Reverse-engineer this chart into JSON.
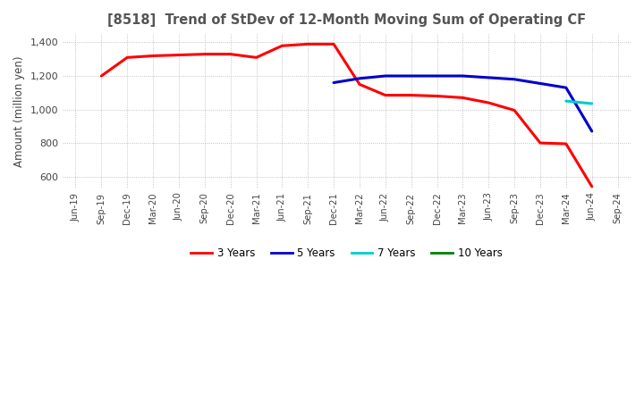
{
  "title": "[8518]  Trend of StDev of 12-Month Moving Sum of Operating CF",
  "ylabel": "Amount (million yen)",
  "ylim": [
    530,
    1450
  ],
  "yticks": [
    600,
    800,
    1000,
    1200,
    1400
  ],
  "background_color": "#ffffff",
  "grid_color": "#aaaaaa",
  "title_color": "#555555",
  "x_labels": [
    "Jun-19",
    "Sep-19",
    "Dec-19",
    "Mar-20",
    "Jun-20",
    "Sep-20",
    "Dec-20",
    "Mar-21",
    "Jun-21",
    "Sep-21",
    "Dec-21",
    "Mar-22",
    "Jun-22",
    "Sep-22",
    "Dec-22",
    "Mar-23",
    "Jun-23",
    "Sep-23",
    "Dec-23",
    "Mar-24",
    "Jun-24",
    "Sep-24"
  ],
  "series": {
    "3 Years": {
      "color": "#ff0000",
      "values": [
        null,
        1200,
        1310,
        1320,
        1325,
        1330,
        1330,
        1310,
        1380,
        1390,
        1390,
        1150,
        1085,
        1085,
        1080,
        1070,
        1040,
        995,
        800,
        795,
        540,
        null
      ]
    },
    "5 Years": {
      "color": "#0000cc",
      "values": [
        null,
        null,
        null,
        null,
        null,
        null,
        null,
        null,
        null,
        null,
        1160,
        1185,
        1200,
        1200,
        1200,
        1200,
        1190,
        1180,
        1155,
        1130,
        870,
        null
      ]
    },
    "7 Years": {
      "color": "#00cccc",
      "values": [
        null,
        null,
        null,
        null,
        null,
        null,
        null,
        null,
        null,
        null,
        null,
        null,
        null,
        null,
        null,
        null,
        null,
        null,
        null,
        1050,
        1035,
        null
      ]
    },
    "10 Years": {
      "color": "#008000",
      "values": [
        null,
        null,
        null,
        null,
        null,
        null,
        null,
        null,
        null,
        null,
        null,
        null,
        null,
        null,
        null,
        null,
        null,
        null,
        null,
        null,
        null,
        null
      ]
    }
  },
  "legend_labels": [
    "3 Years",
    "5 Years",
    "7 Years",
    "10 Years"
  ],
  "legend_colors": [
    "#ff0000",
    "#0000cc",
    "#00cccc",
    "#008000"
  ]
}
